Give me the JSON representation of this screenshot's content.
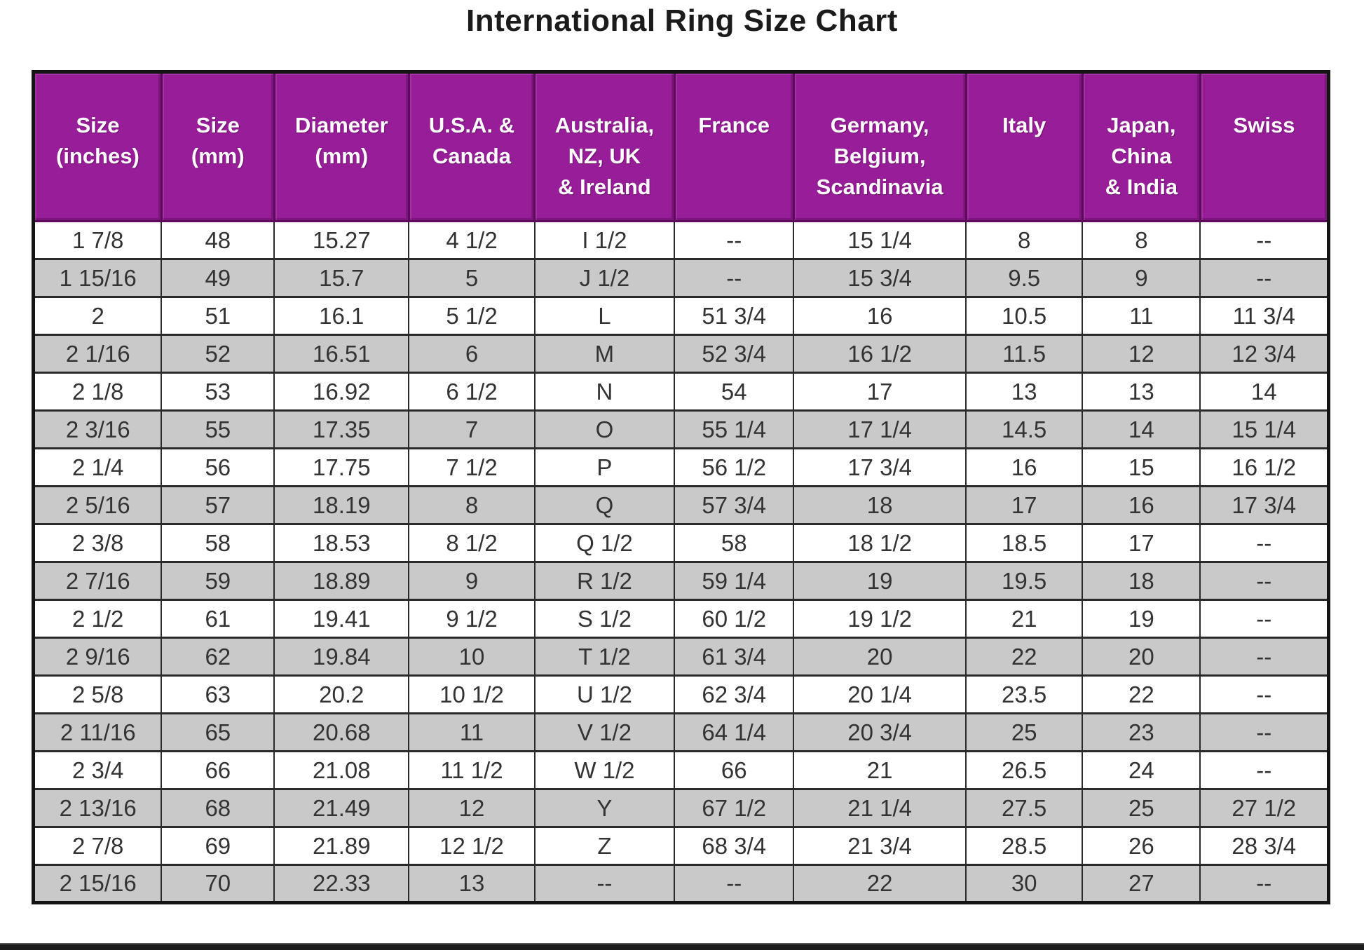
{
  "page": {
    "title": "International Ring Size Chart"
  },
  "chart_data": {
    "type": "table",
    "title": "International Ring Size Chart",
    "columns": [
      "Size (inches)",
      "Size (mm)",
      "Diameter (mm)",
      "U.S.A. & Canada",
      "Australia, NZ, UK & Ireland",
      "France",
      "Germany, Belgium, Scandinavia",
      "Italy",
      "Japan, China & India",
      "Swiss"
    ],
    "rows": [
      [
        "1 7/8",
        "48",
        "15.27",
        "4 1/2",
        "I 1/2",
        "--",
        "15 1/4",
        "8",
        "8",
        "--"
      ],
      [
        "1 15/16",
        "49",
        "15.7",
        "5",
        "J 1/2",
        "--",
        "15 3/4",
        "9.5",
        "9",
        "--"
      ],
      [
        "2",
        "51",
        "16.1",
        "5 1/2",
        "L",
        "51 3/4",
        "16",
        "10.5",
        "11",
        "11 3/4"
      ],
      [
        "2 1/16",
        "52",
        "16.51",
        "6",
        "M",
        "52 3/4",
        "16 1/2",
        "11.5",
        "12",
        "12 3/4"
      ],
      [
        "2 1/8",
        "53",
        "16.92",
        "6 1/2",
        "N",
        "54",
        "17",
        "13",
        "13",
        "14"
      ],
      [
        "2 3/16",
        "55",
        "17.35",
        "7",
        "O",
        "55 1/4",
        "17 1/4",
        "14.5",
        "14",
        "15 1/4"
      ],
      [
        "2 1/4",
        "56",
        "17.75",
        "7 1/2",
        "P",
        "56 1/2",
        "17 3/4",
        "16",
        "15",
        "16 1/2"
      ],
      [
        "2 5/16",
        "57",
        "18.19",
        "8",
        "Q",
        "57 3/4",
        "18",
        "17",
        "16",
        "17 3/4"
      ],
      [
        "2 3/8",
        "58",
        "18.53",
        "8 1/2",
        "Q 1/2",
        "58",
        "18 1/2",
        "18.5",
        "17",
        "--"
      ],
      [
        "2 7/16",
        "59",
        "18.89",
        "9",
        "R 1/2",
        "59 1/4",
        "19",
        "19.5",
        "18",
        "--"
      ],
      [
        "2 1/2",
        "61",
        "19.41",
        "9 1/2",
        "S 1/2",
        "60 1/2",
        "19 1/2",
        "21",
        "19",
        "--"
      ],
      [
        "2 9/16",
        "62",
        "19.84",
        "10",
        "T 1/2",
        "61 3/4",
        "20",
        "22",
        "20",
        "--"
      ],
      [
        "2 5/8",
        "63",
        "20.2",
        "10 1/2",
        "U 1/2",
        "62 3/4",
        "20 1/4",
        "23.5",
        "22",
        "--"
      ],
      [
        "2 11/16",
        "65",
        "20.68",
        "11",
        "V 1/2",
        "64 1/4",
        "20 3/4",
        "25",
        "23",
        "--"
      ],
      [
        "2 3/4",
        "66",
        "21.08",
        "11 1/2",
        "W 1/2",
        "66",
        "21",
        "26.5",
        "24",
        "--"
      ],
      [
        "2 13/16",
        "68",
        "21.49",
        "12",
        "Y",
        "67 1/2",
        "21 1/4",
        "27.5",
        "25",
        "27 1/2"
      ],
      [
        "2 7/8",
        "69",
        "21.89",
        "12 1/2",
        "Z",
        "68 3/4",
        "21 3/4",
        "28.5",
        "26",
        "28 3/4"
      ],
      [
        "2 15/16",
        "70",
        "22.33",
        "13",
        "--",
        "--",
        "22",
        "30",
        "27",
        "--"
      ]
    ]
  },
  "table": {
    "header_labels": [
      "Size\n(inches)",
      "Size\n(mm)",
      "Diameter\n(mm)",
      "U.S.A. &\nCanada",
      "Australia,\nNZ, UK\n& Ireland",
      "France",
      "Germany,\nBelgium,\nScandinavia",
      "Italy",
      "Japan,\nChina\n& India",
      "Swiss"
    ],
    "column_widths_pct": [
      9.9,
      8.7,
      10.4,
      9.7,
      10.8,
      9.2,
      13.3,
      9.0,
      9.1,
      9.9
    ]
  },
  "colors": {
    "header_bg": "#981d98",
    "header_border": "#5e095e",
    "header_text": "#ffffff",
    "row_bg": "#ffffff",
    "row_alt_bg": "#c9c9c9",
    "grid_border": "#2a2a2a",
    "outer_border": "#141414",
    "title_text": "#1b1b1b",
    "bottom_bar": "#1c1c1c"
  }
}
